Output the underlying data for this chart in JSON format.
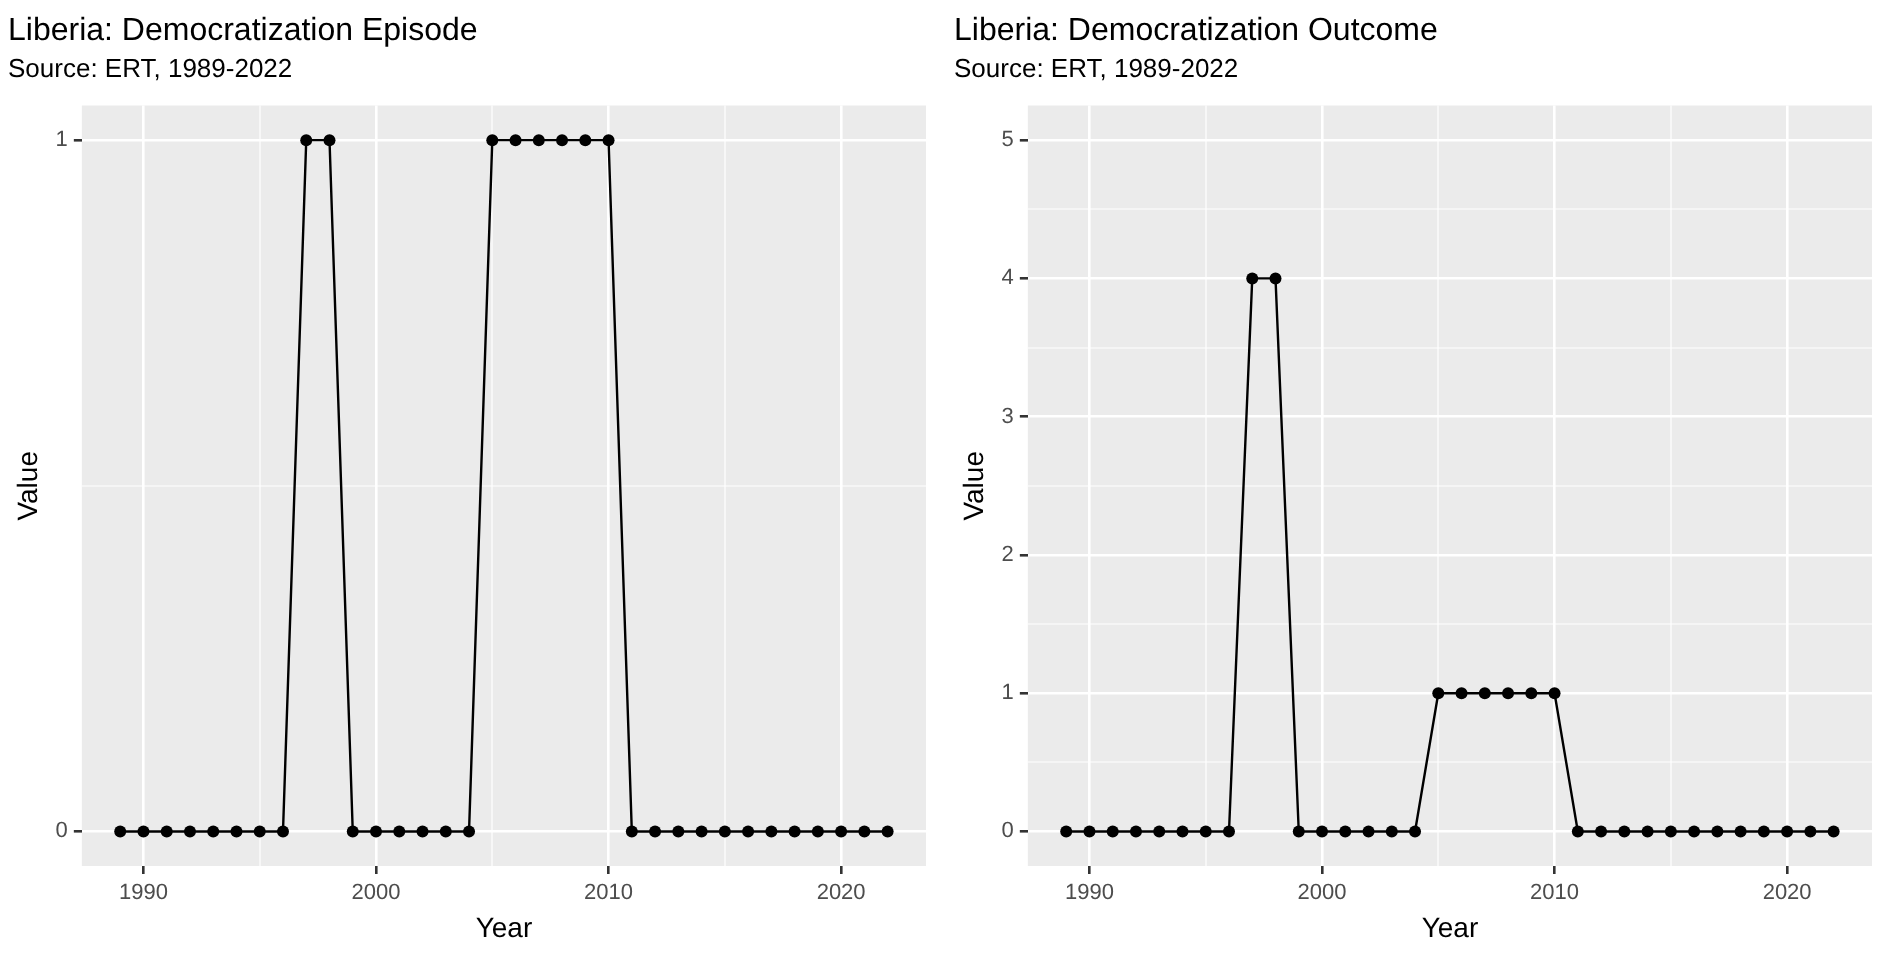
{
  "chart_data": [
    {
      "type": "line",
      "title": "Liberia: Democratization Episode",
      "subtitle": "Source: ERT, 1989-2022",
      "xlabel": "Year",
      "ylabel": "Value",
      "x": [
        1989,
        1990,
        1991,
        1992,
        1993,
        1994,
        1995,
        1996,
        1997,
        1998,
        1999,
        2000,
        2001,
        2002,
        2003,
        2004,
        2005,
        2006,
        2007,
        2008,
        2009,
        2010,
        2011,
        2012,
        2013,
        2014,
        2015,
        2016,
        2017,
        2018,
        2019,
        2020,
        2021,
        2022
      ],
      "series": [
        {
          "color": "#000000",
          "values": [
            0,
            0,
            0,
            0,
            0,
            0,
            0,
            0,
            1,
            1,
            0,
            0,
            0,
            0,
            0,
            0,
            1,
            1,
            1,
            1,
            1,
            1,
            0,
            0,
            0,
            0,
            0,
            0,
            0,
            0,
            0,
            0,
            0,
            0
          ]
        }
      ],
      "xlim": [
        1987.35,
        2023.65
      ],
      "xticks": [
        1990,
        {
          "value": 1995,
          "label": null
        },
        2000,
        {
          "value": 2005,
          "label": null
        },
        2010,
        {
          "value": 2015,
          "label": null
        },
        2020
      ],
      "ylim": [
        -0.05,
        1.05
      ],
      "yticks": [
        0,
        {
          "value": 0.5,
          "label": null
        },
        1
      ],
      "grid": true,
      "legend": false,
      "marker": "circle",
      "line_style": "solid"
    },
    {
      "type": "line",
      "title": "Liberia: Democratization Outcome",
      "subtitle": "Source: ERT, 1989-2022",
      "xlabel": "Year",
      "ylabel": "Value",
      "x": [
        1989,
        1990,
        1991,
        1992,
        1993,
        1994,
        1995,
        1996,
        1997,
        1998,
        1999,
        2000,
        2001,
        2002,
        2003,
        2004,
        2005,
        2006,
        2007,
        2008,
        2009,
        2010,
        2011,
        2012,
        2013,
        2014,
        2015,
        2016,
        2017,
        2018,
        2019,
        2020,
        2021,
        2022
      ],
      "series": [
        {
          "color": "#000000",
          "values": [
            0,
            0,
            0,
            0,
            0,
            0,
            0,
            0,
            4,
            4,
            0,
            0,
            0,
            0,
            0,
            0,
            1,
            1,
            1,
            1,
            1,
            1,
            0,
            0,
            0,
            0,
            0,
            0,
            0,
            0,
            0,
            0,
            0,
            0
          ]
        }
      ],
      "xlim": [
        1987.35,
        2023.65
      ],
      "xticks": [
        1990,
        {
          "value": 1995,
          "label": null
        },
        2000,
        {
          "value": 2005,
          "label": null
        },
        2010,
        {
          "value": 2015,
          "label": null
        },
        2020
      ],
      "ylim": [
        -0.25,
        5.25
      ],
      "yticks": [
        0,
        {
          "value": 0.5,
          "label": null
        },
        1,
        {
          "value": 1.5,
          "label": null
        },
        2,
        {
          "value": 2.5,
          "label": null
        },
        3,
        {
          "value": 3.5,
          "label": null
        },
        4,
        {
          "value": 4.5,
          "label": null
        },
        5
      ],
      "grid": true,
      "legend": false,
      "marker": "circle",
      "line_style": "solid"
    }
  ]
}
